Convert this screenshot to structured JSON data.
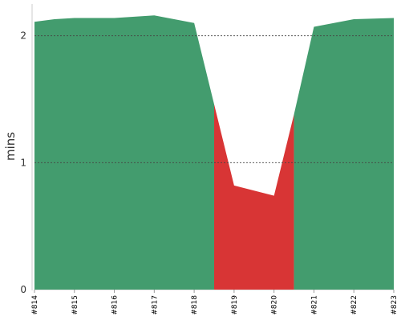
{
  "chart_data": {
    "type": "area",
    "categories": [
      "#814",
      "#815",
      "#816",
      "#817",
      "#818",
      "#819",
      "#820",
      "#821",
      "#822",
      "#823"
    ],
    "x": [
      0,
      0.5,
      1,
      2,
      3,
      4,
      4.5,
      5,
      6,
      6.5,
      7,
      8,
      9
    ],
    "y": [
      2.11,
      2.13,
      2.14,
      2.14,
      2.16,
      2.1,
      1.46,
      0.82,
      0.74,
      1.38,
      2.07,
      2.13,
      2.14
    ],
    "segments": [
      {
        "status": "ok",
        "x_start": 0,
        "x_end": 4.5
      },
      {
        "status": "fail",
        "x_start": 4.5,
        "x_end": 6.5
      },
      {
        "status": "ok",
        "x_start": 6.5,
        "x_end": 9
      }
    ],
    "colors": {
      "ok": "#439c6e",
      "fail": "#d83535"
    },
    "ylabel": "mins",
    "yticks": [
      "0",
      "1",
      "2"
    ],
    "ylim": [
      0,
      2.25
    ],
    "grid": "horizontal dotted",
    "legend": "none"
  }
}
